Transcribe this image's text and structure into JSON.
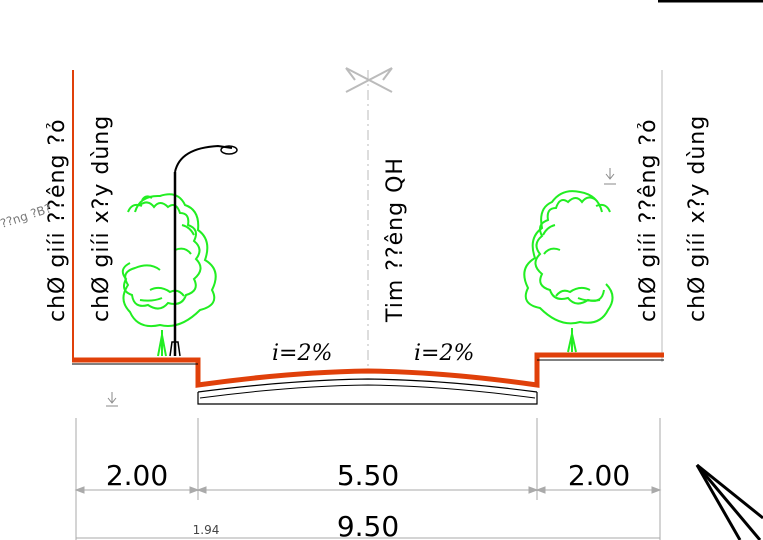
{
  "labels": {
    "left_line1": "chØ giíi ??êng ?ỏ",
    "left_line2": "chØ giíi x?y dùng",
    "right_line1": "chØ giíi ??êng ?ỏ",
    "right_line2": "chØ giíi x?y dùng",
    "centerline": "Tim ??êng QH",
    "slope_left": "i=2%",
    "slope_right": "i=2%",
    "faint_note": "??ng ?B?",
    "small_dim": "1.94"
  },
  "dimensions": {
    "left_sidewalk": "2.00",
    "carriageway": "5.50",
    "right_sidewalk": "2.00",
    "total": "9.50"
  },
  "colors": {
    "road": "#e0400a",
    "tree": "#22ee22",
    "line": "#000000",
    "dimline": "#aaaaaa"
  }
}
